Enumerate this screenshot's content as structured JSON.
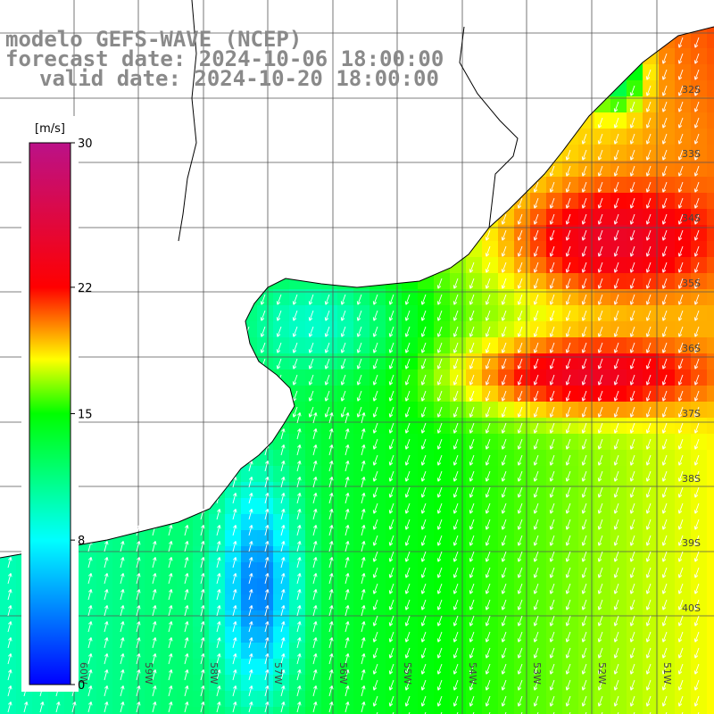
{
  "header": {
    "title_line1": "modelo GEFS-WAVE (NCEP)",
    "title_line2": "forecast date: 2024-10-06 18:00:00",
    "title_line3": "valid date: 2024-10-20 18:00:00"
  },
  "colorbar": {
    "unit_label": "[m/s]",
    "ticks": [
      "30",
      "22",
      "15",
      "8",
      "0"
    ],
    "stops": [
      {
        "value": 0,
        "color": "#0000ff"
      },
      {
        "value": 8,
        "color": "#00ffff"
      },
      {
        "value": 15,
        "color": "#00ff00"
      },
      {
        "value": 18,
        "color": "#ffff00"
      },
      {
        "value": 22,
        "color": "#ff0000"
      },
      {
        "value": 30,
        "color": "#bb1188"
      }
    ]
  },
  "axes": {
    "lat_labels": [
      "32S",
      "33S",
      "34S",
      "35S",
      "36S",
      "37S",
      "38S",
      "39S",
      "40S"
    ],
    "lon_labels": [
      "60W",
      "59W",
      "58W",
      "57W",
      "56W",
      "55W",
      "54W",
      "53W",
      "52W",
      "51W"
    ]
  },
  "field": {
    "variable": "wind speed",
    "arrow_color": "#ffffff",
    "land_color": "#ffffff",
    "grid_color": "#555555",
    "coast_color": "#000000"
  }
}
